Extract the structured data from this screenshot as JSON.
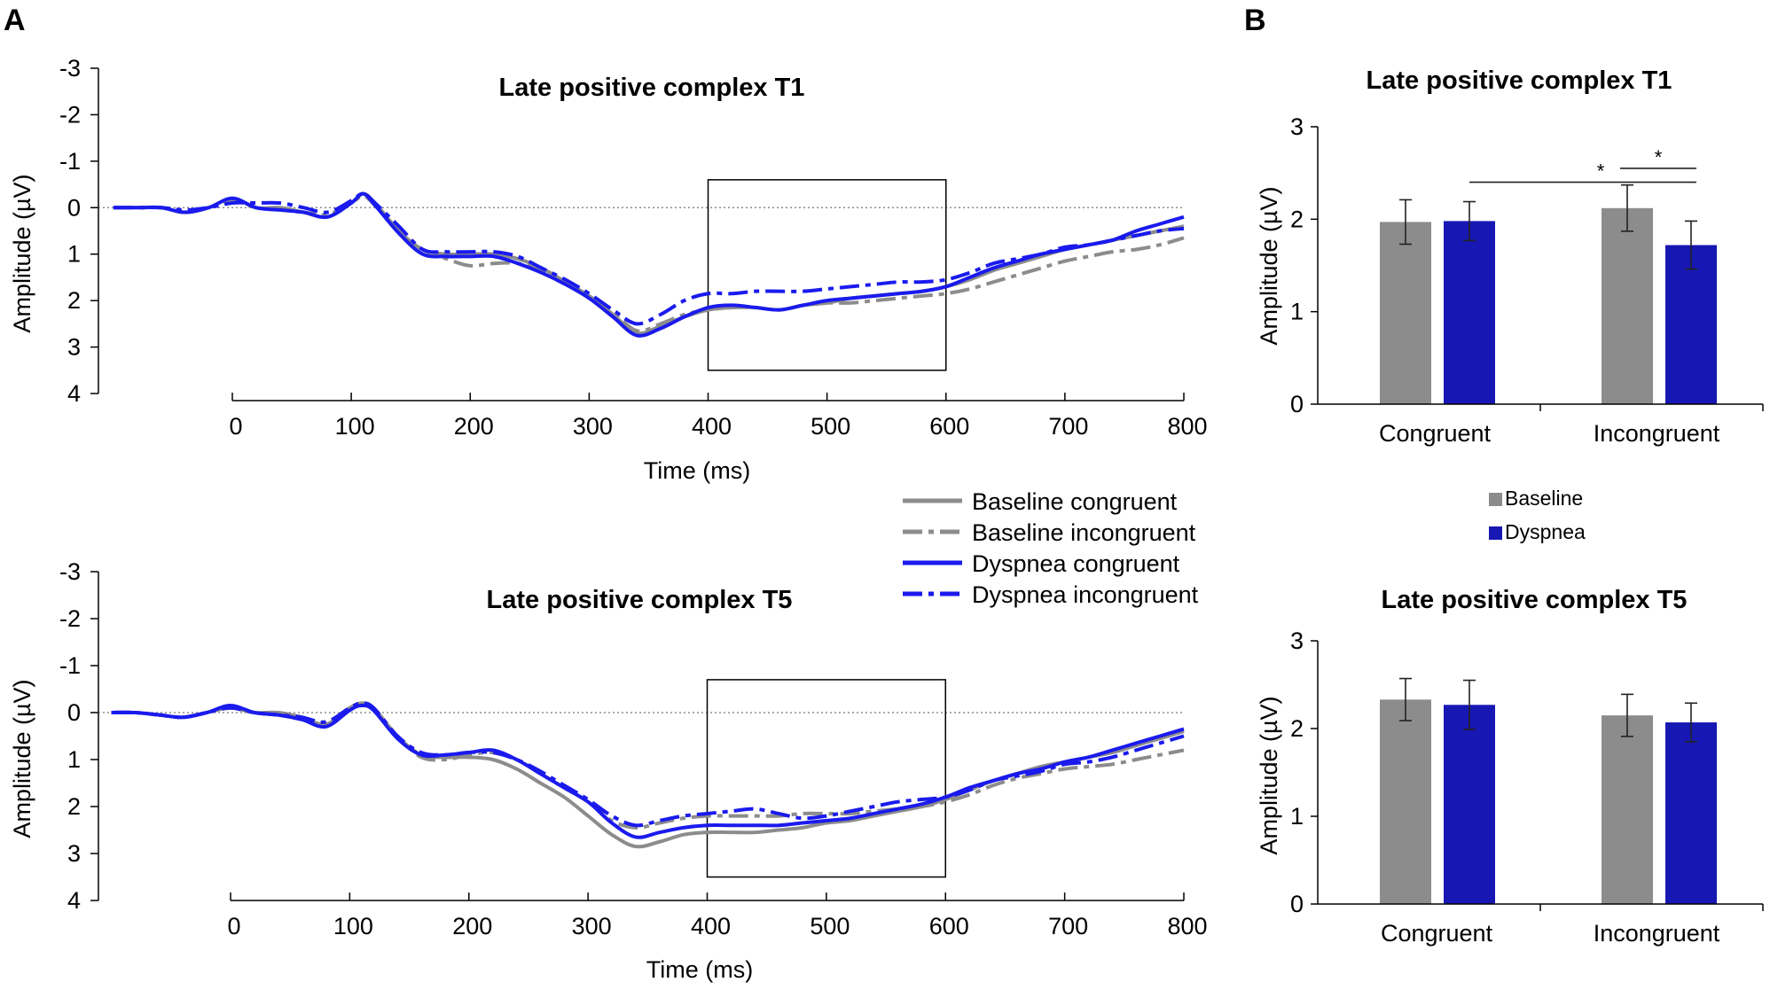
{
  "panel_labels": {
    "a": "A",
    "b": "B"
  },
  "colors": {
    "baseline": "#8c8c8c",
    "dyspnea": "#1a1acc",
    "dyspnea_line": "#1a1aee",
    "bar_blue": "#1717b3"
  },
  "chart_data": [
    {
      "id": "erp_t1",
      "type": "line",
      "title": "Late positive complex T1",
      "xlabel": "Time (ms)",
      "ylabel": "Amplitude (µV)",
      "xlim": [
        -100,
        800
      ],
      "ylim": [
        -3,
        4
      ],
      "y_inverted": true,
      "xticks": [
        "0",
        "100",
        "200",
        "300",
        "400",
        "500",
        "600",
        "700",
        "800"
      ],
      "yticks": [
        "-3",
        "-2",
        "-1",
        "0",
        "1",
        "2",
        "3",
        "4"
      ],
      "analysis_window": [
        400,
        600
      ],
      "window_y": [
        -0.6,
        3.5
      ],
      "x": [
        -100,
        -80,
        -60,
        -40,
        -20,
        0,
        20,
        40,
        60,
        80,
        100,
        110,
        120,
        140,
        160,
        180,
        200,
        220,
        240,
        260,
        280,
        300,
        320,
        340,
        360,
        380,
        400,
        420,
        440,
        460,
        480,
        500,
        520,
        540,
        560,
        580,
        600,
        620,
        640,
        660,
        680,
        700,
        720,
        740,
        760,
        780,
        800
      ],
      "series": [
        {
          "name": "Baseline congruent",
          "style": "solid",
          "color": "#8c8c8c",
          "values": [
            0,
            0,
            0,
            0.1,
            0,
            -0.2,
            0,
            0,
            0.1,
            0.2,
            -0.1,
            -0.3,
            -0.1,
            0.5,
            0.9,
            1,
            1,
            1,
            1.1,
            1.3,
            1.6,
            1.9,
            2.3,
            2.7,
            2.55,
            2.35,
            2.2,
            2.15,
            2.15,
            2.2,
            2.1,
            2.05,
            1.95,
            1.9,
            1.85,
            1.8,
            1.7,
            1.55,
            1.35,
            1.2,
            1.05,
            0.9,
            0.8,
            0.7,
            0.6,
            0.5,
            0.4
          ]
        },
        {
          "name": "Baseline incongruent",
          "style": "dashdot",
          "color": "#8c8c8c",
          "values": [
            0,
            0,
            0,
            0.1,
            0,
            -0.15,
            0,
            0.05,
            0.1,
            0.15,
            -0.1,
            -0.25,
            -0.05,
            0.5,
            0.9,
            1.1,
            1.25,
            1.2,
            1.2,
            1.35,
            1.6,
            1.9,
            2.25,
            2.65,
            2.5,
            2.3,
            2.2,
            2.15,
            2.15,
            2.2,
            2.1,
            2.05,
            2.05,
            2.0,
            1.95,
            1.9,
            1.85,
            1.75,
            1.6,
            1.45,
            1.3,
            1.15,
            1.05,
            0.95,
            0.9,
            0.8,
            0.65
          ]
        },
        {
          "name": "Dyspnea congruent",
          "style": "solid",
          "color": "#1a1aee",
          "values": [
            0,
            0,
            0,
            0.1,
            0,
            -0.2,
            0,
            0.05,
            0.1,
            0.2,
            -0.1,
            -0.3,
            -0.05,
            0.55,
            1,
            1.05,
            1.05,
            1.05,
            1.2,
            1.4,
            1.65,
            1.95,
            2.35,
            2.75,
            2.6,
            2.35,
            2.15,
            2.1,
            2.15,
            2.2,
            2.1,
            2.0,
            1.95,
            1.9,
            1.85,
            1.8,
            1.7,
            1.5,
            1.3,
            1.15,
            1.0,
            0.9,
            0.8,
            0.7,
            0.5,
            0.35,
            0.2
          ]
        },
        {
          "name": "Dyspnea incongruent",
          "style": "dashdot",
          "color": "#1a1aee",
          "values": [
            0,
            0,
            0,
            0.05,
            0,
            -0.1,
            -0.1,
            -0.1,
            0,
            0.1,
            -0.15,
            -0.3,
            -0.1,
            0.4,
            0.9,
            0.95,
            0.95,
            0.95,
            1.05,
            1.3,
            1.55,
            1.85,
            2.2,
            2.5,
            2.3,
            2.0,
            1.85,
            1.85,
            1.8,
            1.8,
            1.8,
            1.75,
            1.7,
            1.65,
            1.6,
            1.6,
            1.55,
            1.4,
            1.2,
            1.1,
            1.0,
            0.85,
            0.8,
            0.7,
            0.6,
            0.5,
            0.45
          ]
        }
      ]
    },
    {
      "id": "erp_t5",
      "type": "line",
      "title": "Late positive complex T5",
      "xlabel": "Time (ms)",
      "ylabel": "Amplitude (µV)",
      "xlim": [
        -100,
        800
      ],
      "ylim": [
        -3,
        4
      ],
      "y_inverted": true,
      "xticks": [
        "0",
        "100",
        "200",
        "300",
        "400",
        "500",
        "600",
        "700",
        "800"
      ],
      "yticks": [
        "-3",
        "-2",
        "-1",
        "0",
        "1",
        "2",
        "3",
        "4"
      ],
      "analysis_window": [
        400,
        600
      ],
      "window_y": [
        -0.7,
        3.5
      ],
      "x": [
        -100,
        -80,
        -60,
        -40,
        -20,
        0,
        20,
        40,
        60,
        80,
        100,
        110,
        120,
        140,
        160,
        180,
        200,
        220,
        240,
        260,
        280,
        300,
        320,
        340,
        360,
        380,
        400,
        420,
        440,
        460,
        480,
        500,
        520,
        540,
        560,
        580,
        600,
        620,
        640,
        660,
        680,
        700,
        720,
        740,
        760,
        780,
        800
      ],
      "series": [
        {
          "name": "Baseline congruent",
          "style": "solid",
          "color": "#8c8c8c",
          "values": [
            0,
            0,
            0.05,
            0.1,
            0,
            -0.1,
            0,
            0,
            0.1,
            0.25,
            -0.1,
            -0.2,
            -0.1,
            0.5,
            0.9,
            0.95,
            0.95,
            1.0,
            1.2,
            1.5,
            1.8,
            2.2,
            2.6,
            2.85,
            2.75,
            2.6,
            2.55,
            2.55,
            2.55,
            2.5,
            2.45,
            2.35,
            2.3,
            2.2,
            2.1,
            2.0,
            1.85,
            1.65,
            1.45,
            1.3,
            1.15,
            1.05,
            0.95,
            0.85,
            0.7,
            0.55,
            0.4
          ]
        },
        {
          "name": "Baseline incongruent",
          "style": "dashdot",
          "color": "#8c8c8c",
          "values": [
            0,
            0,
            0.05,
            0.1,
            0,
            -0.1,
            0,
            0.05,
            0.1,
            0.2,
            -0.1,
            -0.2,
            -0.1,
            0.5,
            0.95,
            1.0,
            0.9,
            0.85,
            1.0,
            1.3,
            1.6,
            1.9,
            2.3,
            2.45,
            2.35,
            2.25,
            2.2,
            2.2,
            2.2,
            2.2,
            2.15,
            2.15,
            2.15,
            2.1,
            2.05,
            2.0,
            1.9,
            1.75,
            1.55,
            1.4,
            1.3,
            1.2,
            1.15,
            1.1,
            1.0,
            0.9,
            0.8
          ]
        },
        {
          "name": "Dyspnea congruent",
          "style": "solid",
          "color": "#1a1aee",
          "values": [
            0,
            0,
            0.05,
            0.1,
            0,
            -0.15,
            0,
            0.05,
            0.15,
            0.3,
            -0.05,
            -0.15,
            -0.05,
            0.55,
            0.9,
            0.9,
            0.85,
            0.8,
            1.0,
            1.3,
            1.6,
            1.9,
            2.35,
            2.65,
            2.55,
            2.45,
            2.4,
            2.4,
            2.4,
            2.4,
            2.35,
            2.3,
            2.25,
            2.15,
            2.05,
            1.95,
            1.8,
            1.6,
            1.45,
            1.3,
            1.2,
            1.05,
            0.95,
            0.8,
            0.65,
            0.5,
            0.35
          ]
        },
        {
          "name": "Dyspnea incongruent",
          "style": "dashdot",
          "color": "#1a1aee",
          "values": [
            0,
            0,
            0.05,
            0.1,
            0,
            -0.1,
            0,
            0.05,
            0.1,
            0.2,
            -0.1,
            -0.2,
            -0.1,
            0.5,
            0.85,
            0.9,
            0.85,
            0.85,
            1.0,
            1.25,
            1.55,
            1.85,
            2.2,
            2.4,
            2.3,
            2.2,
            2.15,
            2.1,
            2.05,
            2.15,
            2.25,
            2.2,
            2.1,
            2.0,
            1.9,
            1.85,
            1.8,
            1.65,
            1.45,
            1.35,
            1.25,
            1.1,
            1.05,
            0.95,
            0.8,
            0.65,
            0.5
          ]
        }
      ]
    },
    {
      "id": "bar_t1",
      "type": "bar",
      "title": "Late positive complex T1",
      "ylabel": "Amplitude (µV)",
      "ylim": [
        0,
        3
      ],
      "yticks": [
        "0",
        "1",
        "2",
        "3"
      ],
      "categories": [
        "Congruent",
        "Incongruent"
      ],
      "series": [
        {
          "name": "Baseline",
          "color": "#8c8c8c",
          "values": [
            1.97,
            2.12
          ],
          "errors": [
            0.24,
            0.25
          ]
        },
        {
          "name": "Dyspnea",
          "color": "#1717b3",
          "values": [
            1.98,
            1.72
          ],
          "errors": [
            0.21,
            0.26
          ]
        }
      ],
      "significance": [
        {
          "label": "*",
          "from": "Congruent/Dyspnea",
          "to": "Incongruent/Dyspnea",
          "y": 2.4
        },
        {
          "label": "*",
          "from": "Incongruent/Baseline",
          "to": "Incongruent/Dyspnea",
          "y": 2.55
        }
      ]
    },
    {
      "id": "bar_t5",
      "type": "bar",
      "title": "Late positive complex T5",
      "ylabel": "Amplitude (µV)",
      "ylim": [
        0,
        3
      ],
      "yticks": [
        "0",
        "1",
        "2",
        "3"
      ],
      "categories": [
        "Congruent",
        "Incongruent"
      ],
      "series": [
        {
          "name": "Baseline",
          "color": "#8c8c8c",
          "values": [
            2.33,
            2.15
          ],
          "errors": [
            0.24,
            0.24
          ]
        },
        {
          "name": "Dyspnea",
          "color": "#1717b3",
          "values": [
            2.27,
            2.07
          ],
          "errors": [
            0.28,
            0.22
          ]
        }
      ]
    }
  ],
  "line_legend": [
    {
      "label": "Baseline congruent",
      "style": "solid",
      "color": "#8c8c8c"
    },
    {
      "label": "Baseline incongruent",
      "style": "dashdot",
      "color": "#8c8c8c"
    },
    {
      "label": "Dyspnea congruent",
      "style": "solid",
      "color": "#1a1aee"
    },
    {
      "label": "Dyspnea incongruent",
      "style": "dashdot",
      "color": "#1a1aee"
    }
  ],
  "bar_legend": [
    {
      "label": "Baseline",
      "color": "#8c8c8c"
    },
    {
      "label": "Dyspnea",
      "color": "#1717b3"
    }
  ]
}
